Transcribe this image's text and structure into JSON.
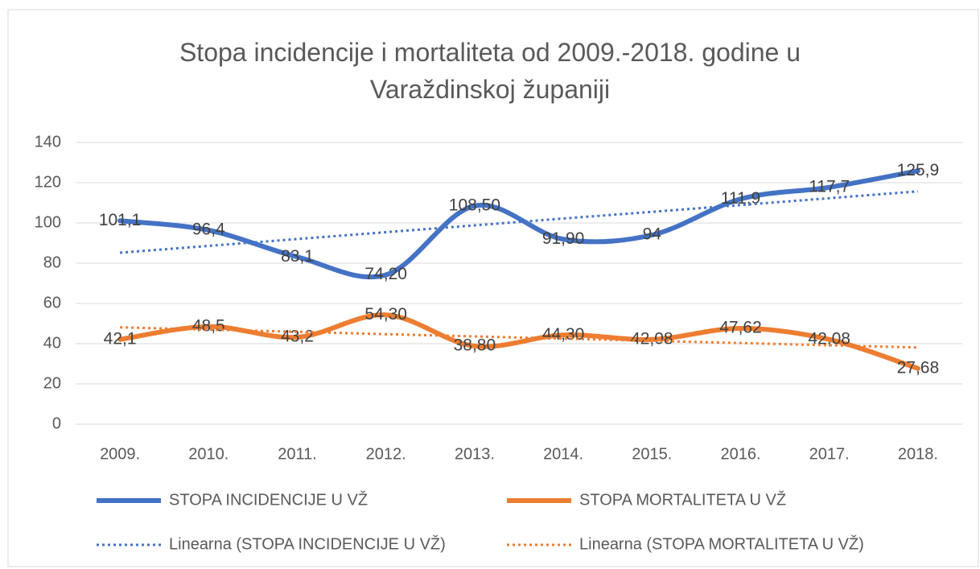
{
  "chart_data": {
    "type": "line",
    "title": "Stopa incidencije i mortaliteta od 2009.-2018. godine u Varaždinskoj županiji",
    "categories": [
      "2009.",
      "2010.",
      "2011.",
      "2012.",
      "2013.",
      "2014.",
      "2015.",
      "2016.",
      "2017.",
      "2018."
    ],
    "series": [
      {
        "name": "STOPA INCIDENCIJE U VŽ",
        "color": "#4472c4",
        "style": "smooth",
        "values": [
          101.1,
          96.4,
          83.1,
          74.2,
          108.5,
          91.9,
          94,
          111.9,
          117.7,
          125.9
        ],
        "value_labels": [
          "101,1",
          "96,4",
          "83,1",
          "74,20",
          "108,50",
          "91,90",
          "94",
          "111,9",
          "117,7",
          "125,9"
        ]
      },
      {
        "name": "STOPA MORTALITETA U VŽ",
        "color": "#ed7d31",
        "style": "smooth",
        "values": [
          42.1,
          48.5,
          43.2,
          54.3,
          38.8,
          44.3,
          42.08,
          47.62,
          42.08,
          27.68
        ],
        "value_labels": [
          "42,1",
          "48,5",
          "43,2",
          "54,30",
          "38,80",
          "44,30",
          "42,08",
          "47,62",
          "42,08",
          "27,68"
        ]
      },
      {
        "name": "Linearna (STOPA INCIDENCIJE U VŽ)",
        "color": "#4472c4",
        "style": "dotted",
        "values": [
          85.2,
          88.6,
          92.0,
          95.4,
          98.8,
          102.2,
          105.5,
          108.9,
          112.3,
          115.7
        ]
      },
      {
        "name": "Linearna (STOPA MORTALITETA U VŽ)",
        "color": "#ed7d31",
        "style": "dotted",
        "values": [
          48.1,
          47.0,
          45.9,
          44.7,
          43.6,
          42.5,
          41.4,
          40.3,
          39.2,
          38.1
        ]
      }
    ],
    "ylim": [
      0,
      140
    ],
    "yticks": [
      0,
      20,
      40,
      60,
      80,
      100,
      120,
      140
    ],
    "grid": true,
    "legend": "bottom"
  }
}
